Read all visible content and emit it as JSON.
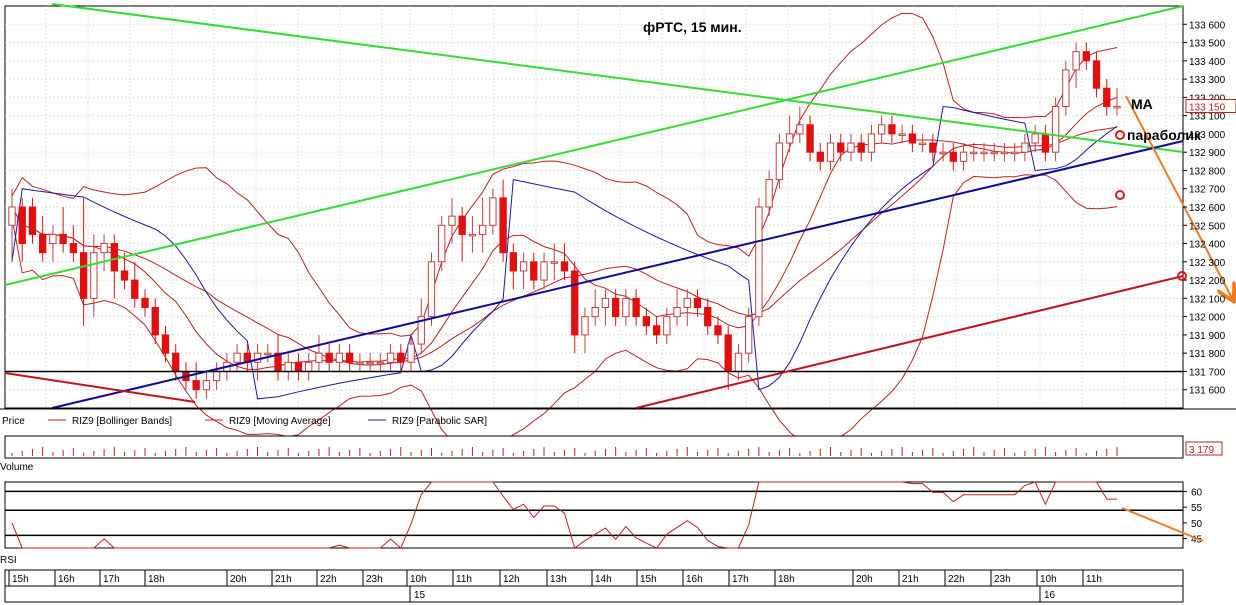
{
  "chart_data": {
    "type": "candlestick",
    "title": "фРТС,  15 мин.",
    "instrument": "RIZ9",
    "price_axis": {
      "range": [
        131500,
        133700
      ],
      "ticks": [
        "133 600",
        "133 500",
        "133 400",
        "133 300",
        "133 200",
        "133 100",
        "133 000",
        "132 900",
        "132 800",
        "132 700",
        "132 600",
        "132 500",
        "132 400",
        "132 300",
        "132 200",
        "132 100",
        "132 000",
        "131 900",
        "131 800",
        "131 700",
        "131 600"
      ],
      "tick_values": [
        133600,
        133500,
        133400,
        133300,
        133200,
        133100,
        133000,
        132900,
        132800,
        132700,
        132600,
        132500,
        132400,
        132300,
        132200,
        132100,
        132000,
        131900,
        131800,
        131700,
        131600
      ],
      "last_price_label": "133 150",
      "last_price": 133150
    },
    "annotations": {
      "ma_label": "MA",
      "parabolic_label": "параболик"
    },
    "horizontal_level": 131700,
    "legend": {
      "price": "Price",
      "bollinger": "RIZ9 [Bollinger Bands]",
      "moving_average": "RIZ9 [Moving Average]",
      "parabolic": "RIZ9 [Parabolic SAR]"
    },
    "candles": [
      {
        "o": 132500,
        "h": 132700,
        "l": 132300,
        "c": 132600
      },
      {
        "o": 132600,
        "h": 132650,
        "l": 132300,
        "c": 132400
      },
      {
        "o": 132600,
        "h": 132650,
        "l": 132400,
        "c": 132450
      },
      {
        "o": 132450,
        "h": 132550,
        "l": 132300,
        "c": 132350
      },
      {
        "o": 132400,
        "h": 132500,
        "l": 132300,
        "c": 132450
      },
      {
        "o": 132450,
        "h": 132600,
        "l": 132350,
        "c": 132400
      },
      {
        "o": 132400,
        "h": 132500,
        "l": 132300,
        "c": 132350
      },
      {
        "o": 132350,
        "h": 132650,
        "l": 131950,
        "c": 132100
      },
      {
        "o": 132100,
        "h": 132450,
        "l": 132000,
        "c": 132350
      },
      {
        "o": 132350,
        "h": 132450,
        "l": 132250,
        "c": 132400
      },
      {
        "o": 132400,
        "h": 132450,
        "l": 132100,
        "c": 132250
      },
      {
        "o": 132250,
        "h": 132350,
        "l": 132150,
        "c": 132200
      },
      {
        "o": 132200,
        "h": 132300,
        "l": 132050,
        "c": 132100
      },
      {
        "o": 132100,
        "h": 132150,
        "l": 132000,
        "c": 132050
      },
      {
        "o": 132050,
        "h": 132100,
        "l": 131850,
        "c": 131900
      },
      {
        "o": 131900,
        "h": 131950,
        "l": 131750,
        "c": 131800
      },
      {
        "o": 131800,
        "h": 131850,
        "l": 131650,
        "c": 131700
      },
      {
        "o": 131700,
        "h": 131750,
        "l": 131600,
        "c": 131650
      },
      {
        "o": 131650,
        "h": 131750,
        "l": 131550,
        "c": 131600
      },
      {
        "o": 131600,
        "h": 131700,
        "l": 131550,
        "c": 131650
      },
      {
        "o": 131650,
        "h": 131750,
        "l": 131600,
        "c": 131700
      },
      {
        "o": 131700,
        "h": 131800,
        "l": 131650,
        "c": 131750
      },
      {
        "o": 131750,
        "h": 131850,
        "l": 131700,
        "c": 131800
      },
      {
        "o": 131800,
        "h": 131850,
        "l": 131700,
        "c": 131750
      },
      {
        "o": 131750,
        "h": 131850,
        "l": 131650,
        "c": 131800
      },
      {
        "o": 131800,
        "h": 131850,
        "l": 131750,
        "c": 131800
      },
      {
        "o": 131800,
        "h": 131900,
        "l": 131650,
        "c": 131700
      },
      {
        "o": 131700,
        "h": 131800,
        "l": 131650,
        "c": 131750
      },
      {
        "o": 131750,
        "h": 131800,
        "l": 131650,
        "c": 131700
      },
      {
        "o": 131700,
        "h": 131800,
        "l": 131650,
        "c": 131750
      },
      {
        "o": 131750,
        "h": 131900,
        "l": 131700,
        "c": 131800
      },
      {
        "o": 131800,
        "h": 131850,
        "l": 131700,
        "c": 131750
      },
      {
        "o": 131750,
        "h": 131850,
        "l": 131700,
        "c": 131800
      },
      {
        "o": 131800,
        "h": 131850,
        "l": 131700,
        "c": 131750
      },
      {
        "o": 131750,
        "h": 131800,
        "l": 131700,
        "c": 131750
      },
      {
        "o": 131750,
        "h": 131800,
        "l": 131700,
        "c": 131750
      },
      {
        "o": 131750,
        "h": 131800,
        "l": 131700,
        "c": 131750
      },
      {
        "o": 131750,
        "h": 131850,
        "l": 131700,
        "c": 131800
      },
      {
        "o": 131800,
        "h": 131850,
        "l": 131700,
        "c": 131750
      },
      {
        "o": 131750,
        "h": 131900,
        "l": 131700,
        "c": 131850
      },
      {
        "o": 131850,
        "h": 132100,
        "l": 131800,
        "c": 132000
      },
      {
        "o": 132000,
        "h": 132350,
        "l": 131950,
        "c": 132300
      },
      {
        "o": 132300,
        "h": 132550,
        "l": 132250,
        "c": 132500
      },
      {
        "o": 132500,
        "h": 132650,
        "l": 132400,
        "c": 132550
      },
      {
        "o": 132550,
        "h": 132600,
        "l": 132300,
        "c": 132450
      },
      {
        "o": 132450,
        "h": 132550,
        "l": 132350,
        "c": 132450
      },
      {
        "o": 132450,
        "h": 132650,
        "l": 132350,
        "c": 132500
      },
      {
        "o": 132500,
        "h": 132700,
        "l": 132450,
        "c": 132650
      },
      {
        "o": 132650,
        "h": 132750,
        "l": 132300,
        "c": 132350
      },
      {
        "o": 132350,
        "h": 132400,
        "l": 132150,
        "c": 132250
      },
      {
        "o": 132250,
        "h": 132350,
        "l": 132150,
        "c": 132300
      },
      {
        "o": 132300,
        "h": 132350,
        "l": 132150,
        "c": 132200
      },
      {
        "o": 132200,
        "h": 132350,
        "l": 132150,
        "c": 132300
      },
      {
        "o": 132300,
        "h": 132400,
        "l": 132200,
        "c": 132300
      },
      {
        "o": 132300,
        "h": 132400,
        "l": 132200,
        "c": 132250
      },
      {
        "o": 132250,
        "h": 132300,
        "l": 131800,
        "c": 131900
      },
      {
        "o": 131900,
        "h": 132050,
        "l": 131800,
        "c": 132000
      },
      {
        "o": 132000,
        "h": 132150,
        "l": 131950,
        "c": 132050
      },
      {
        "o": 132050,
        "h": 132150,
        "l": 131950,
        "c": 132100
      },
      {
        "o": 132100,
        "h": 132150,
        "l": 131950,
        "c": 132000
      },
      {
        "o": 132000,
        "h": 132150,
        "l": 131950,
        "c": 132100
      },
      {
        "o": 132100,
        "h": 132150,
        "l": 131950,
        "c": 132000
      },
      {
        "o": 132000,
        "h": 132050,
        "l": 131900,
        "c": 131950
      },
      {
        "o": 131950,
        "h": 132000,
        "l": 131850,
        "c": 131900
      },
      {
        "o": 131900,
        "h": 132050,
        "l": 131850,
        "c": 132000
      },
      {
        "o": 132000,
        "h": 132150,
        "l": 131950,
        "c": 132050
      },
      {
        "o": 132050,
        "h": 132150,
        "l": 131950,
        "c": 132100
      },
      {
        "o": 132100,
        "h": 132150,
        "l": 132000,
        "c": 132050
      },
      {
        "o": 132050,
        "h": 132100,
        "l": 131900,
        "c": 131950
      },
      {
        "o": 131950,
        "h": 132000,
        "l": 131850,
        "c": 131900
      },
      {
        "o": 131900,
        "h": 131950,
        "l": 131600,
        "c": 131700
      },
      {
        "o": 131700,
        "h": 131850,
        "l": 131650,
        "c": 131800
      },
      {
        "o": 131800,
        "h": 132050,
        "l": 131750,
        "c": 132000
      },
      {
        "o": 132000,
        "h": 132650,
        "l": 131950,
        "c": 132600
      },
      {
        "o": 132600,
        "h": 132800,
        "l": 132550,
        "c": 132750
      },
      {
        "o": 132750,
        "h": 133000,
        "l": 132700,
        "c": 132950
      },
      {
        "o": 132950,
        "h": 133100,
        "l": 132900,
        "c": 133000
      },
      {
        "o": 133000,
        "h": 133150,
        "l": 132950,
        "c": 133050
      },
      {
        "o": 133050,
        "h": 133100,
        "l": 132850,
        "c": 132900
      },
      {
        "o": 132900,
        "h": 132950,
        "l": 132800,
        "c": 132850
      },
      {
        "o": 132850,
        "h": 133000,
        "l": 132800,
        "c": 132950
      },
      {
        "o": 132950,
        "h": 133000,
        "l": 132850,
        "c": 132900
      },
      {
        "o": 132900,
        "h": 133000,
        "l": 132850,
        "c": 132950
      },
      {
        "o": 132950,
        "h": 133000,
        "l": 132850,
        "c": 132900
      },
      {
        "o": 132900,
        "h": 133050,
        "l": 132850,
        "c": 133000
      },
      {
        "o": 133000,
        "h": 133100,
        "l": 132950,
        "c": 133050
      },
      {
        "o": 133050,
        "h": 133100,
        "l": 132950,
        "c": 133000
      },
      {
        "o": 133000,
        "h": 133050,
        "l": 132950,
        "c": 133000
      },
      {
        "o": 133000,
        "h": 133050,
        "l": 132900,
        "c": 132950
      },
      {
        "o": 132950,
        "h": 133000,
        "l": 132900,
        "c": 132950
      },
      {
        "o": 132950,
        "h": 133000,
        "l": 132850,
        "c": 132900
      },
      {
        "o": 132900,
        "h": 132950,
        "l": 132850,
        "c": 132900
      },
      {
        "o": 132900,
        "h": 132950,
        "l": 132800,
        "c": 132850
      },
      {
        "o": 132850,
        "h": 132950,
        "l": 132800,
        "c": 132900
      },
      {
        "o": 132900,
        "h": 132950,
        "l": 132850,
        "c": 132900
      },
      {
        "o": 132900,
        "h": 132950,
        "l": 132850,
        "c": 132900
      },
      {
        "o": 132900,
        "h": 132950,
        "l": 132850,
        "c": 132900
      },
      {
        "o": 132900,
        "h": 132950,
        "l": 132850,
        "c": 132900
      },
      {
        "o": 132900,
        "h": 132950,
        "l": 132850,
        "c": 132900
      },
      {
        "o": 132900,
        "h": 133000,
        "l": 132850,
        "c": 132950
      },
      {
        "o": 132950,
        "h": 133050,
        "l": 132900,
        "c": 133000
      },
      {
        "o": 133000,
        "h": 133050,
        "l": 132850,
        "c": 132900
      },
      {
        "o": 132900,
        "h": 133200,
        "l": 132850,
        "c": 133150
      },
      {
        "o": 133150,
        "h": 133400,
        "l": 133100,
        "c": 133350
      },
      {
        "o": 133350,
        "h": 133500,
        "l": 133250,
        "c": 133450
      },
      {
        "o": 133450,
        "h": 133500,
        "l": 133350,
        "c": 133400
      },
      {
        "o": 133400,
        "h": 133450,
        "l": 133200,
        "c": 133250
      },
      {
        "o": 133250,
        "h": 133300,
        "l": 133100,
        "c": 133150
      },
      {
        "o": 133150,
        "h": 133250,
        "l": 133100,
        "c": 133150
      }
    ],
    "volume": {
      "label": "Volume",
      "last_value_label": "3 179"
    },
    "rsi": {
      "label": "RSI",
      "ticks": [
        "60",
        "55",
        "50",
        "45"
      ],
      "tick_values": [
        60,
        55,
        50,
        45
      ],
      "range": [
        42,
        63
      ],
      "levels": [
        60,
        54,
        46
      ]
    },
    "time_axis": {
      "hour_labels": [
        "15h",
        "16h",
        "17h",
        "18h",
        "20h",
        "21h",
        "22h",
        "23h",
        "10h",
        "11h",
        "12h",
        "13h",
        "14h",
        "15h",
        "16h",
        "17h",
        "18h",
        "20h",
        "21h",
        "22h",
        "23h",
        "10h",
        "11h"
      ],
      "date_labels": [
        "15",
        "16"
      ]
    },
    "colors": {
      "up_candle": "#ffffff",
      "down_candle": "#e01010",
      "bollinger": "#c02020",
      "parabolic": "#1a1aa0",
      "green_trend": "#33dd33",
      "blue_trend": "#0b0b9a",
      "red_trend": "#c0141a",
      "forecast_arrow": "#f07a20",
      "grid": "#c8c8c8"
    }
  }
}
